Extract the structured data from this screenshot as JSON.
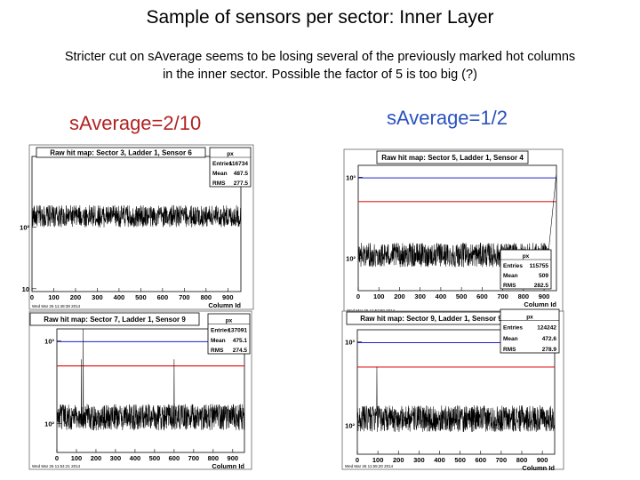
{
  "title": "Sample of sensors per sector: Inner Layer",
  "subtitle_lines": [
    "Stricter cut on sAverage seems to be losing several of the previously marked hot columns",
    "in the inner sector. Possible the factor of 5 is too big (?)"
  ],
  "labels": {
    "left": "sAverage=2/10",
    "right": "sAverage=1/2"
  },
  "colors": {
    "left_label": "#b22222",
    "right_label": "#2a52be",
    "hist": "#000000",
    "red_line": "#e02020",
    "blue_line": "#2020d0"
  },
  "chart_data": [
    {
      "type": "line",
      "title": "Raw hit map: Sector 3, Ladder 1, Sensor 6",
      "xlabel": "Column Id",
      "xlim": [
        0,
        960
      ],
      "xticks": [
        "0",
        "100",
        "200",
        "300",
        "400",
        "500",
        "600",
        "700",
        "800",
        "900"
      ],
      "yscale": "log",
      "ylim": [
        9,
        1400
      ],
      "yticks": [
        {
          "v": 10,
          "label": "10"
        },
        {
          "v": 100,
          "label": "10²"
        }
      ],
      "baseline": 150,
      "noise": 0.18,
      "spikes": [],
      "rise_end": false,
      "red_line": null,
      "blue_line": null,
      "stats": {
        "name": "px",
        "entries": "116734",
        "mean": "487.5",
        "rms": "277.5"
      },
      "footer": "Wed Mar 26 11:48:38 2014"
    },
    {
      "type": "line",
      "title": "Raw hit map: Sector 5, Ladder 1, Sensor 4",
      "xlabel": "Column Id",
      "xlim": [
        0,
        960
      ],
      "xticks": [
        "0",
        "100",
        "200",
        "300",
        "400",
        "500",
        "600",
        "700",
        "800",
        "900"
      ],
      "yscale": "log",
      "ylim": [
        40,
        1400
      ],
      "yticks": [
        {
          "v": 100,
          "label": "10²"
        },
        {
          "v": 1000,
          "label": "10³"
        }
      ],
      "baseline": 110,
      "noise": 0.15,
      "spikes": [],
      "rise_end": true,
      "red_line": 500,
      "blue_line": 980,
      "stats": {
        "name": "px",
        "entries": "115755",
        "mean": "509",
        "rms": "282.5"
      },
      "footer": "Wed Mar 26 11:52:50 2014"
    },
    {
      "type": "line",
      "title": "Raw hit map: Sector 7, Ladder 1, Sensor 9",
      "xlabel": "Column Id",
      "xlim": [
        0,
        960
      ],
      "xticks": [
        "0",
        "100",
        "200",
        "300",
        "400",
        "500",
        "600",
        "700",
        "800",
        "900"
      ],
      "yscale": "log",
      "ylim": [
        45,
        1400
      ],
      "yticks": [
        {
          "v": 100,
          "label": "10²"
        },
        {
          "v": 1000,
          "label": "10³"
        }
      ],
      "baseline": 120,
      "noise": 0.16,
      "spikes": [
        {
          "x": 135,
          "v": 1500
        },
        {
          "x": 125,
          "v": 600
        },
        {
          "x": 600,
          "v": 600
        }
      ],
      "rise_end": false,
      "red_line": 500,
      "blue_line": 980,
      "stats": {
        "name": "px",
        "entries": "137091",
        "mean": "475.1",
        "rms": "274.5"
      },
      "footer": "Wed Mar 26 11:54:21 2014"
    },
    {
      "type": "line",
      "title": "Raw hit map: Sector 9, Ladder 1, Sensor 9",
      "xlabel": "Column Id",
      "xlim": [
        0,
        960
      ],
      "xticks": [
        "0",
        "100",
        "200",
        "300",
        "400",
        "500",
        "600",
        "700",
        "800",
        "900"
      ],
      "yscale": "log",
      "ylim": [
        45,
        1400
      ],
      "yticks": [
        {
          "v": 100,
          "label": "10²"
        },
        {
          "v": 1000,
          "label": "10³"
        }
      ],
      "baseline": 120,
      "noise": 0.16,
      "spikes": [
        {
          "x": 95,
          "v": 500
        }
      ],
      "rise_end": false,
      "red_line": 500,
      "blue_line": 980,
      "stats": {
        "name": "px",
        "entries": "124242",
        "mean": "472.6",
        "rms": "278.9"
      },
      "footer": "Wed Mar 26 11:55:20 2014"
    }
  ]
}
